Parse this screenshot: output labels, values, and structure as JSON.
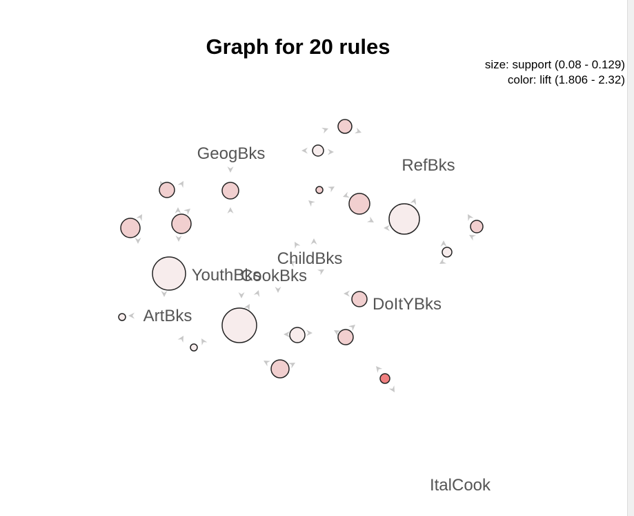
{
  "plot": {
    "title": "Graph for 20 rules",
    "legend": {
      "size_line": "size: support (0.08 - 0.129)",
      "color_line": "color: lift (1.806 - 2.32)"
    }
  },
  "colors": {
    "rule_fill_low": "#f7ecec",
    "rule_fill_mid": "#f1cfcf",
    "rule_fill_high": "#f08080",
    "item_label": "#555555",
    "arrow": "#c8c8c8",
    "stroke": "#222222"
  },
  "items": [
    {
      "id": "geog",
      "label": "GeogBks"
    },
    {
      "id": "ref",
      "label": "RefBks"
    },
    {
      "id": "child",
      "label": "ChildBks"
    },
    {
      "id": "youth",
      "label": "YouthBks"
    },
    {
      "id": "cook",
      "label": "CookBks"
    },
    {
      "id": "doit",
      "label": "DoItYBks"
    },
    {
      "id": "art",
      "label": "ArtBks"
    },
    {
      "id": "ital",
      "label": "ItalCook"
    }
  ]
}
